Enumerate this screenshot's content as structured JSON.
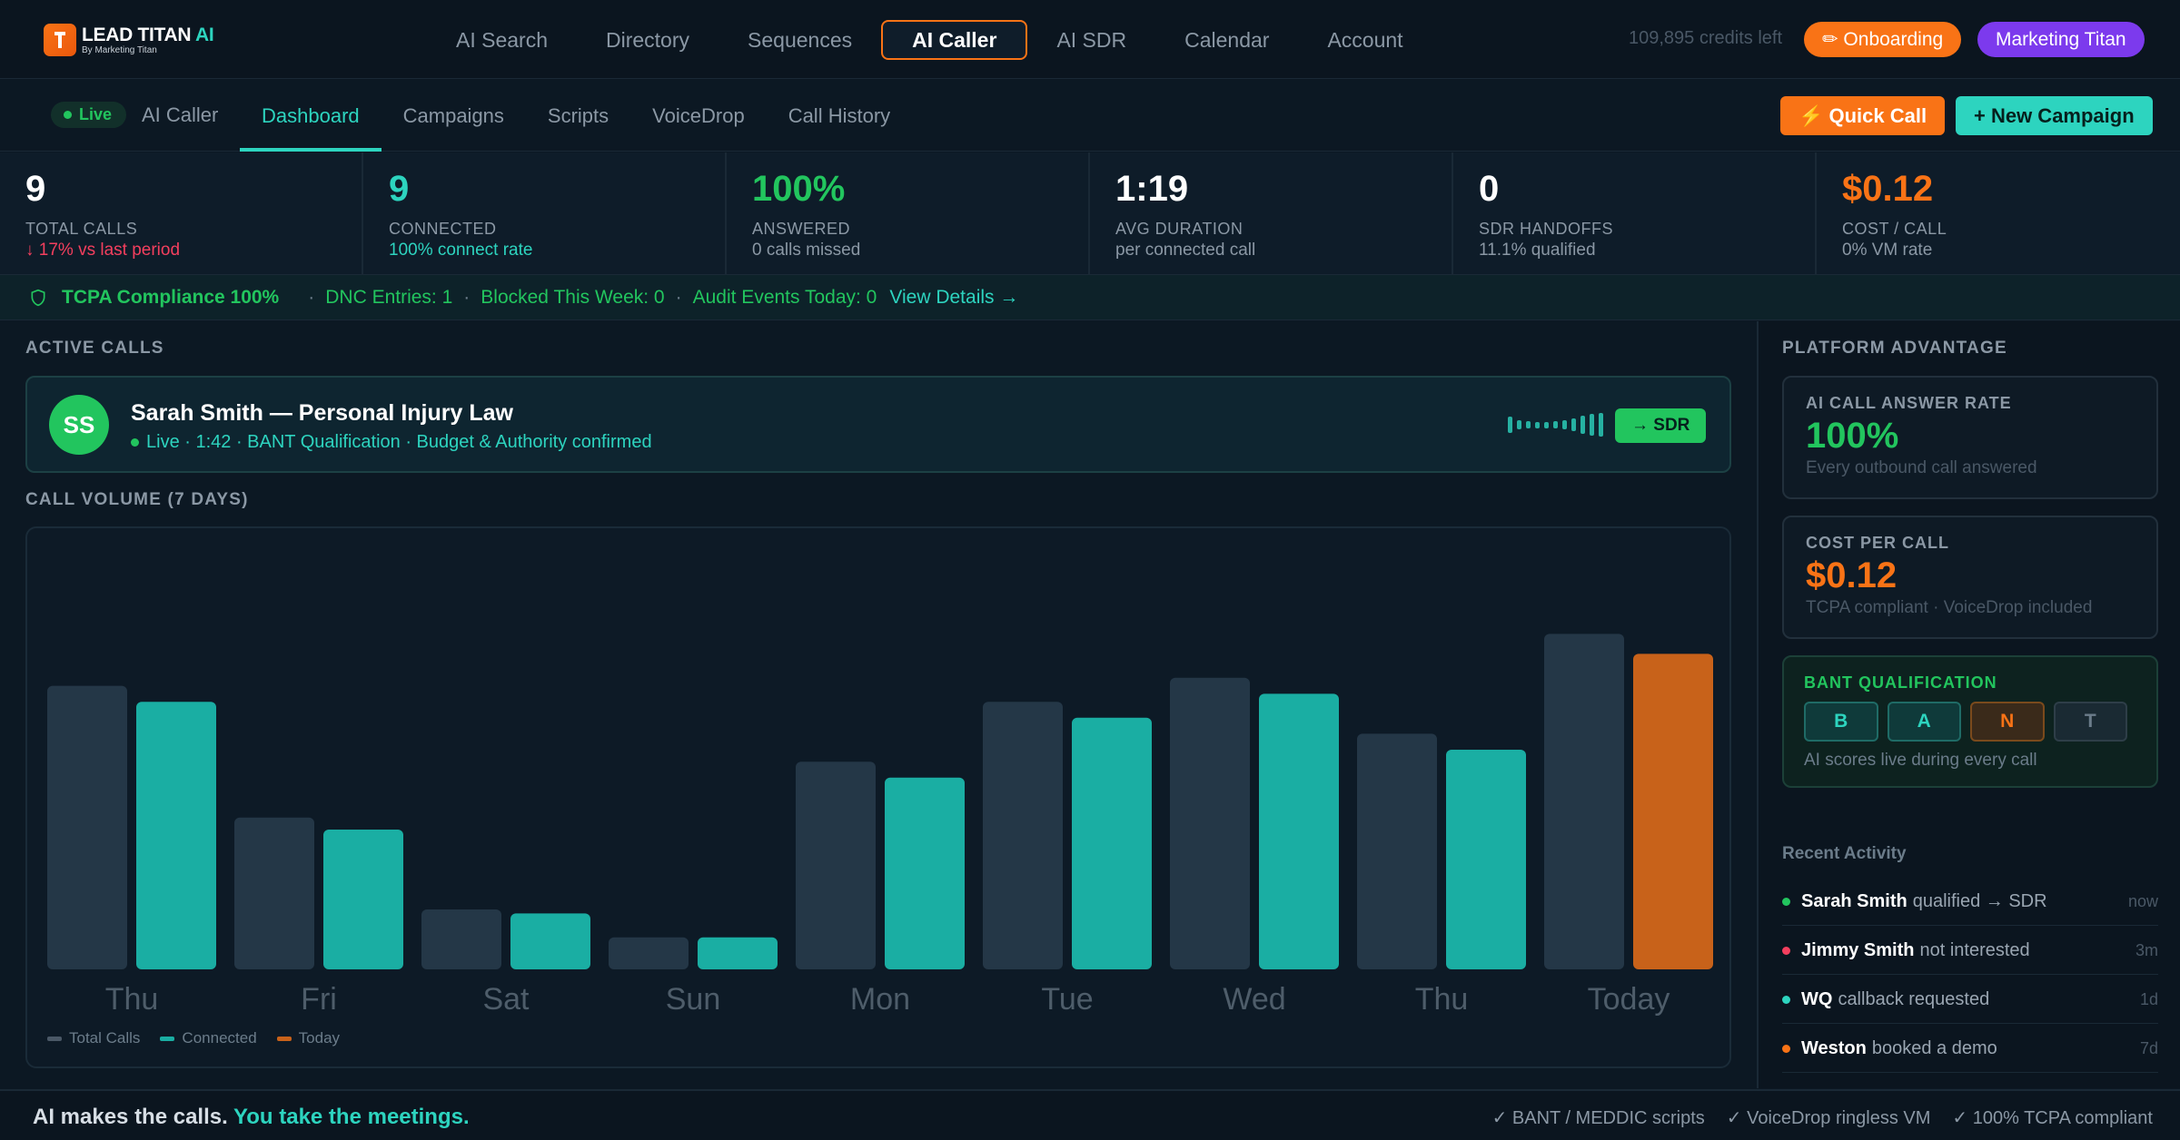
{
  "brand": {
    "name": "LEAD TITAN",
    "ai": "AI",
    "sub": "By Marketing Titan"
  },
  "nav": {
    "items": [
      {
        "label": "AI Search"
      },
      {
        "label": "Directory"
      },
      {
        "label": "Sequences"
      },
      {
        "label": "AI Caller",
        "active": true
      },
      {
        "label": "AI SDR"
      },
      {
        "label": "Calendar"
      },
      {
        "label": "Account"
      }
    ],
    "credits": "109,895 credits left",
    "onboarding": "✏ Onboarding",
    "workspace": "Marketing Titan"
  },
  "subnav": {
    "live": "Live",
    "title": "AI Caller",
    "tabs": [
      {
        "label": "Dashboard",
        "active": true
      },
      {
        "label": "Campaigns"
      },
      {
        "label": "Scripts"
      },
      {
        "label": "VoiceDrop"
      },
      {
        "label": "Call History"
      }
    ],
    "quick_call": "⚡ Quick Call",
    "new_campaign": "+ New Campaign"
  },
  "stats": [
    {
      "value": "9",
      "label": "TOTAL CALLS",
      "sub": "↓ 17% vs last period",
      "value_color": "#ffffff",
      "sub_color": "#f43f5e"
    },
    {
      "value": "9",
      "label": "CONNECTED",
      "sub": "100% connect rate",
      "value_color": "#2dd4bf",
      "sub_color": "#2dd4bf"
    },
    {
      "value": "100%",
      "label": "ANSWERED",
      "sub": "0 calls missed",
      "value_color": "#22c55e",
      "sub_color": "#8b98a5"
    },
    {
      "value": "1:19",
      "label": "AVG DURATION",
      "sub": "per connected call",
      "value_color": "#ffffff",
      "sub_color": "#8b98a5"
    },
    {
      "value": "0",
      "label": "SDR HANDOFFS",
      "sub": "11.1% qualified",
      "value_color": "#ffffff",
      "sub_color": "#8b98a5"
    },
    {
      "value": "$0.12",
      "label": "COST / CALL",
      "sub": "0% VM rate",
      "value_color": "#f97316",
      "sub_color": "#8b98a5"
    }
  ],
  "tcpa": {
    "title": "TCPA Compliance 100%",
    "items": [
      "DNC Entries: 1",
      "Blocked This Week: 0",
      "Audit Events Today: 0"
    ],
    "link": "View Details →"
  },
  "active_calls": {
    "label": "ACTIVE CALLS",
    "call": {
      "initials": "SS",
      "name": "Sarah Smith — Personal Injury Law",
      "meta": "Live · 1:42 · BANT Qualification · Budget & Authority confirmed",
      "action": "→ SDR"
    }
  },
  "chart_label": "CALL VOLUME (7 DAYS)",
  "chart_data": {
    "type": "bar",
    "categories": [
      "Thu",
      "Fri",
      "Sat",
      "Sun",
      "Mon",
      "Tue",
      "Wed",
      "Thu",
      "Today"
    ],
    "series": [
      {
        "name": "Total Calls",
        "values": [
          71,
          38,
          15,
          8,
          52,
          67,
          73,
          59,
          84
        ],
        "color": "#243747"
      },
      {
        "name": "Connected",
        "values": [
          67,
          35,
          14,
          8,
          48,
          63,
          69,
          55,
          79
        ],
        "color": "#1aaea3"
      }
    ],
    "highlight": {
      "category": "Today",
      "series": "Connected",
      "color": "#c8621a",
      "label": "Today"
    },
    "ylim": [
      0,
      100
    ],
    "legend": "bottom-left",
    "grid": false
  },
  "side": {
    "label": "PLATFORM ADVANTAGE",
    "cards": [
      {
        "label": "AI CALL ANSWER RATE",
        "value": "100%",
        "sub": "Every outbound call answered",
        "color": "#22c55e"
      },
      {
        "label": "COST PER CALL",
        "value": "$0.12",
        "sub": "TCPA compliant · VoiceDrop included",
        "color": "#f97316"
      }
    ],
    "bant": {
      "label": "BANT QUALIFICATION",
      "boxes": [
        {
          "letter": "B",
          "color": "#2dd4bf",
          "bg": "#0f3a3a",
          "border": "#1f6b66"
        },
        {
          "letter": "A",
          "color": "#2dd4bf",
          "bg": "#0f3a3a",
          "border": "#1f6b66"
        },
        {
          "letter": "N",
          "color": "#f97316",
          "bg": "#3a2a1a",
          "border": "#7a4a1c"
        },
        {
          "letter": "T",
          "color": "#6b7c8a",
          "bg": "#1a2a33",
          "border": "#2e3e48"
        }
      ],
      "sub": "AI scores live during every call"
    },
    "recent_title": "Recent Activity",
    "activity": [
      {
        "who": "Sarah Smith",
        "what": "qualified → SDR",
        "when": "now",
        "color": "#22c55e"
      },
      {
        "who": "Jimmy Smith",
        "what": "not interested",
        "when": "3m",
        "color": "#f43f5e"
      },
      {
        "who": "WQ",
        "what": "callback requested",
        "when": "1d",
        "color": "#2dd4bf"
      },
      {
        "who": "Weston",
        "what": "booked a demo",
        "when": "7d",
        "color": "#f97316"
      }
    ]
  },
  "footer": {
    "left": "AI makes the calls.",
    "left_hl": "You take the meetings.",
    "features": [
      "✓ BANT / MEDDIC scripts",
      "✓ VoiceDrop ringless VM",
      "✓ 100% TCPA compliant"
    ]
  }
}
